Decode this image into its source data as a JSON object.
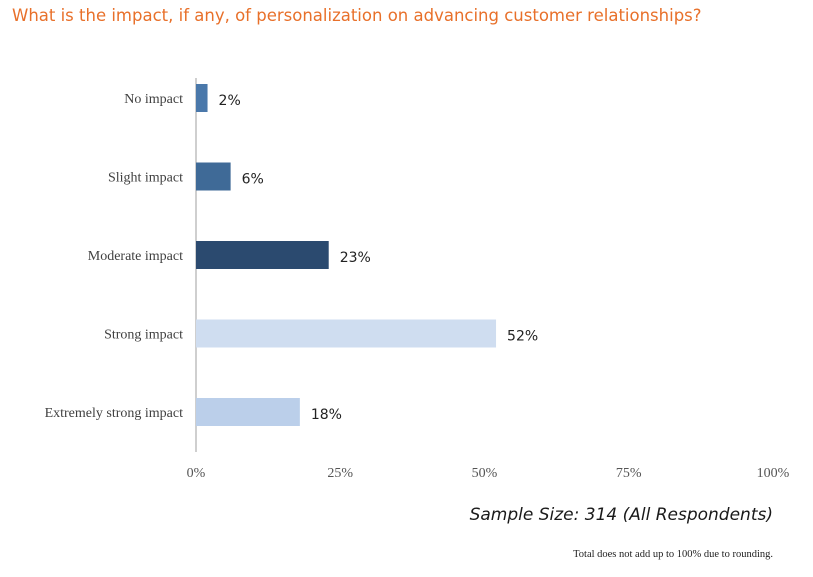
{
  "chart_data": {
    "type": "bar",
    "orientation": "horizontal",
    "title": "What is the impact, if any, of personalization on advancing customer relationships?",
    "categories": [
      "No impact",
      "Slight impact",
      "Moderate impact",
      "Strong impact",
      "Extremely strong impact"
    ],
    "values": [
      2,
      6,
      23,
      52,
      18
    ],
    "value_labels": [
      "2%",
      "6%",
      "23%",
      "52%",
      "18%"
    ],
    "bar_colors": [
      "#4A78AA",
      "#3F6A97",
      "#2B4A6F",
      "#CFDDF0",
      "#BBCFEA"
    ],
    "xlim": [
      0,
      100
    ],
    "xticks": [
      0,
      25,
      50,
      75,
      100
    ],
    "xtick_labels": [
      "0%",
      "25%",
      "50%",
      "75%",
      "100%"
    ],
    "grid": false,
    "axis_color": "#BFBFBF"
  },
  "notes": {
    "sample_size": "Sample Size: 314 (All Respondents)",
    "footnote": "Total does not add up to 100% due to rounding."
  }
}
